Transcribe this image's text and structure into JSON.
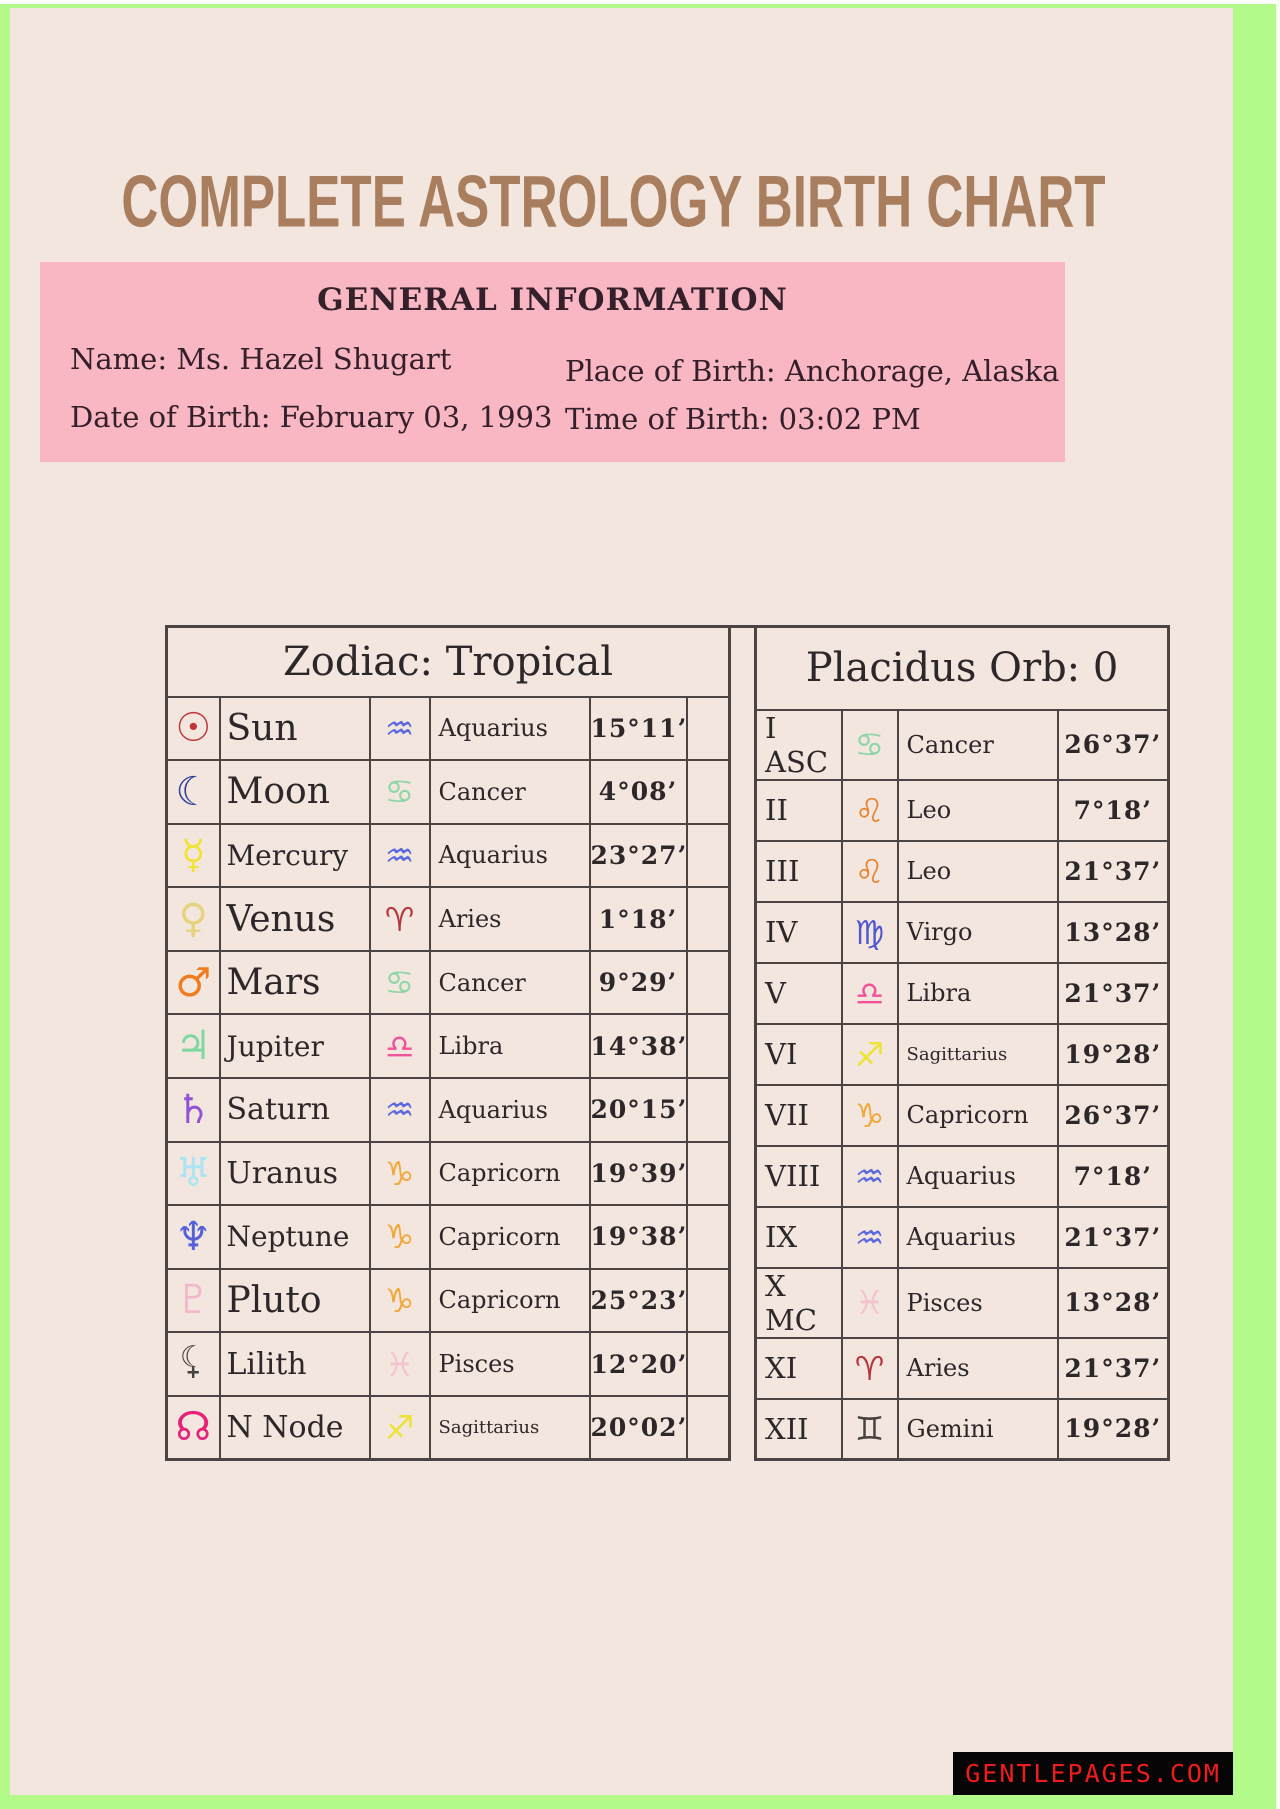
{
  "page": {
    "title": "COMPLETE ASTROLOGY BIRTH CHART",
    "watermark": "GENTLEPAGES.COM",
    "colors": {
      "frame_green": "#b2fb8b",
      "background_cream": "#f2e6de",
      "info_pink": "#f9b6c3",
      "title_brown": "#a87e5e",
      "table_border": "#4b4442",
      "text_dark": "#2e2729",
      "watermark_red": "#ee1d1b",
      "watermark_bg": "#060404"
    }
  },
  "general_info": {
    "heading": "GENERAL INFORMATION",
    "left_lines": [
      "Name: Ms. Hazel Shugart",
      "Date of Birth: February 03, 1993"
    ],
    "right_lines": [
      "Place of Birth: Anchorage, Alaska",
      "Time of Birth: 03:02 PM"
    ]
  },
  "zodiac_table": {
    "header": "Zodiac: Tropical",
    "rows": [
      {
        "planet": "Sun",
        "planet_symbol": "☉",
        "planet_color": "#c0353c",
        "sign": "Aquarius",
        "sign_symbol": "♒",
        "sign_color": "#5c68de",
        "degree": "15°11’"
      },
      {
        "planet": "Moon",
        "planet_symbol": "☾",
        "planet_color": "#2e3e9c",
        "sign": "Cancer",
        "sign_symbol": "♋",
        "sign_color": "#8ed6a6",
        "degree": "4°08’"
      },
      {
        "planet": "Mercury",
        "planet_symbol": "☿",
        "planet_color": "#f2e338",
        "sign": "Aquarius",
        "sign_symbol": "♒",
        "sign_color": "#5c68de",
        "degree": "23°27’"
      },
      {
        "planet": "Venus",
        "planet_symbol": "♀",
        "planet_color": "#e6d37e",
        "sign": "Aries",
        "sign_symbol": "♈",
        "sign_color": "#b5373e",
        "degree": "1°18’"
      },
      {
        "planet": "Mars",
        "planet_symbol": "♂",
        "planet_color": "#ef7d1d",
        "sign": "Cancer",
        "sign_symbol": "♋",
        "sign_color": "#8ed6a6",
        "degree": "9°29’"
      },
      {
        "planet": "Jupiter",
        "planet_symbol": "♃",
        "planet_color": "#7fd79f",
        "sign": "Libra",
        "sign_symbol": "♎",
        "sign_color": "#f2519b",
        "degree": "14°38’"
      },
      {
        "planet": "Saturn",
        "planet_symbol": "♄",
        "planet_color": "#9152d6",
        "sign": "Aquarius",
        "sign_symbol": "♒",
        "sign_color": "#5c68de",
        "degree": "20°15’"
      },
      {
        "planet": "Uranus",
        "planet_symbol": "♅",
        "planet_color": "#abe4f2",
        "sign": "Capricorn",
        "sign_symbol": "♑",
        "sign_color": "#f2a83a",
        "degree": "19°39’"
      },
      {
        "planet": "Neptune",
        "planet_symbol": "♆",
        "planet_color": "#5560d9",
        "sign": "Capricorn",
        "sign_symbol": "♑",
        "sign_color": "#f2a83a",
        "degree": "19°38’"
      },
      {
        "planet": "Pluto",
        "planet_symbol": "♇",
        "planet_color": "#f4b8cb",
        "sign": "Capricorn",
        "sign_symbol": "♑",
        "sign_color": "#f2a83a",
        "degree": "25°23’"
      },
      {
        "planet": "Lilith",
        "planet_symbol": "⚸",
        "planet_color": "#474040",
        "sign": "Pisces",
        "sign_symbol": "♓",
        "sign_color": "#f4c3cd",
        "degree": "12°20’"
      },
      {
        "planet": "N Node",
        "planet_symbol": "☊",
        "planet_color": "#e5217a",
        "sign": "Sagittarius",
        "sign_symbol": "♐",
        "sign_color": "#eee234",
        "degree": "20°02’"
      }
    ]
  },
  "houses_table": {
    "header": "Placidus Orb: 0",
    "rows": [
      {
        "house": "I ASC",
        "sign": "Cancer",
        "sign_symbol": "♋",
        "sign_color": "#8ed6a6",
        "degree": "26°37’"
      },
      {
        "house": "II",
        "sign": "Leo",
        "sign_symbol": "♌",
        "sign_color": "#e8832f",
        "degree": "7°18’"
      },
      {
        "house": "III",
        "sign": "Leo",
        "sign_symbol": "♌",
        "sign_color": "#e8832f",
        "degree": "21°37’"
      },
      {
        "house": "IV",
        "sign": "Virgo",
        "sign_symbol": "♍",
        "sign_color": "#5058d0",
        "degree": "13°28’"
      },
      {
        "house": "V",
        "sign": "Libra",
        "sign_symbol": "♎",
        "sign_color": "#f2519b",
        "degree": "21°37’"
      },
      {
        "house": "VI",
        "sign": "Sagittarius",
        "sign_symbol": "♐",
        "sign_color": "#eee234",
        "degree": "19°28’"
      },
      {
        "house": "VII",
        "sign": "Capricorn",
        "sign_symbol": "♑",
        "sign_color": "#f2a83a",
        "degree": "26°37’"
      },
      {
        "house": "VIII",
        "sign": "Aquarius",
        "sign_symbol": "♒",
        "sign_color": "#5c68de",
        "degree": "7°18’"
      },
      {
        "house": "IX",
        "sign": "Aquarius",
        "sign_symbol": "♒",
        "sign_color": "#5c68de",
        "degree": "21°37’"
      },
      {
        "house": "X MC",
        "sign": "Pisces",
        "sign_symbol": "♓",
        "sign_color": "#f4c3cd",
        "degree": "13°28’"
      },
      {
        "house": "XI",
        "sign": "Aries",
        "sign_symbol": "♈",
        "sign_color": "#b5373e",
        "degree": "21°37’"
      },
      {
        "house": "XII",
        "sign": "Gemini",
        "sign_symbol": "♊",
        "sign_color": "#46413f",
        "degree": "19°28’"
      }
    ]
  }
}
